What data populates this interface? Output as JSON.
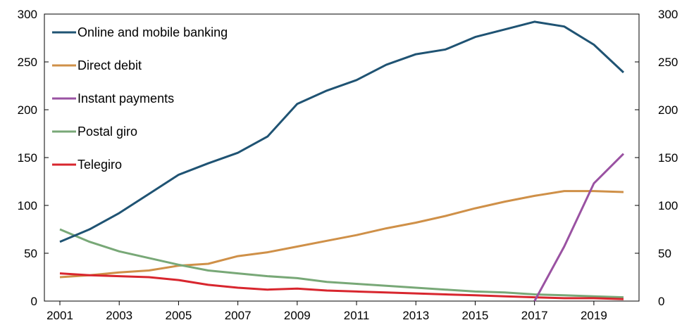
{
  "chart_data": {
    "type": "line",
    "x": [
      2001,
      2002,
      2003,
      2004,
      2005,
      2006,
      2007,
      2008,
      2009,
      2010,
      2011,
      2012,
      2013,
      2014,
      2015,
      2016,
      2017,
      2018,
      2019,
      2020
    ],
    "x_tick_labels": [
      "2001",
      "2003",
      "2005",
      "2007",
      "2009",
      "2011",
      "2013",
      "2015",
      "2017",
      "2019"
    ],
    "y_tick_labels": [
      "0",
      "50",
      "100",
      "150",
      "200",
      "250",
      "300"
    ],
    "ylim": [
      0,
      300
    ],
    "xlim": [
      2001,
      2020
    ],
    "grid": false,
    "legend_position": "top-left",
    "secondary_y_axis": true,
    "series": [
      {
        "name": "Online and mobile banking",
        "color": "#1f5373",
        "values": [
          62,
          75,
          92,
          112,
          132,
          144,
          155,
          172,
          206,
          220,
          231,
          247,
          258,
          263,
          276,
          284,
          292,
          287,
          268,
          239
        ]
      },
      {
        "name": "Direct debit",
        "color": "#cf9048",
        "values": [
          25,
          27,
          30,
          32,
          37,
          39,
          47,
          51,
          57,
          63,
          69,
          76,
          82,
          89,
          97,
          104,
          110,
          115,
          115,
          114
        ]
      },
      {
        "name": "Instant payments",
        "color": "#9a52a2",
        "values": [
          null,
          null,
          null,
          null,
          null,
          null,
          null,
          null,
          null,
          null,
          null,
          null,
          null,
          null,
          null,
          null,
          0,
          57,
          123,
          154
        ]
      },
      {
        "name": "Postal giro",
        "color": "#78a877",
        "values": [
          75,
          62,
          52,
          45,
          38,
          32,
          29,
          26,
          24,
          20,
          18,
          16,
          14,
          12,
          10,
          9,
          7,
          6,
          5,
          4
        ]
      },
      {
        "name": "Telegiro",
        "color": "#d8262e",
        "values": [
          29,
          27,
          26,
          25,
          22,
          17,
          14,
          12,
          13,
          11,
          10,
          9,
          8,
          7,
          6,
          5,
          4,
          3,
          3,
          2
        ]
      }
    ]
  }
}
